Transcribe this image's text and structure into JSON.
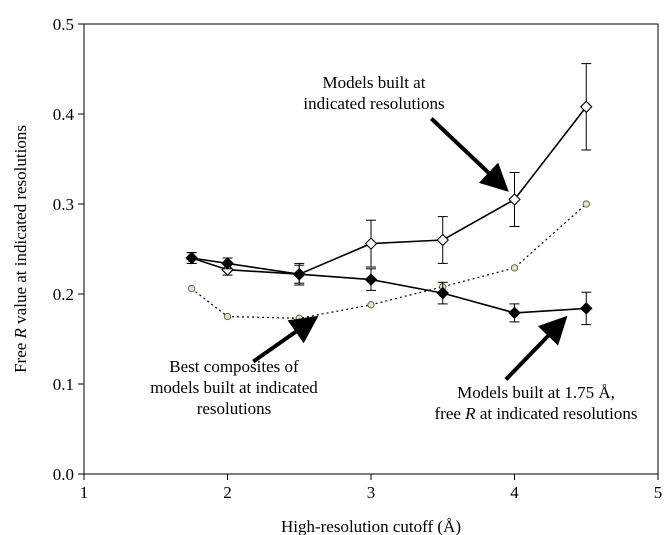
{
  "chart_data": {
    "type": "line",
    "xlabel": "High-resolution cutoff (Å)",
    "ylabel_parts": [
      "Free ",
      "R",
      " value at indicated resolutions"
    ],
    "xlim": [
      1,
      5
    ],
    "ylim": [
      0,
      0.5
    ],
    "x_ticks": [
      1,
      2,
      3,
      4,
      5
    ],
    "y_ticks": [
      0.0,
      0.1,
      0.2,
      0.3,
      0.4,
      0.5
    ],
    "x_tick_labels": [
      "1",
      "2",
      "3",
      "4",
      "5"
    ],
    "y_tick_labels": [
      "0.0",
      "0.1",
      "0.2",
      "0.3",
      "0.4",
      "0.5"
    ],
    "grid": false,
    "legend": "none",
    "series": [
      {
        "marker": "open-diamond",
        "line": "solid",
        "color": "#000000",
        "x": [
          1.75,
          2,
          2.5,
          3,
          3.5,
          4,
          4.5
        ],
        "y": [
          0.24,
          0.227,
          0.222,
          0.256,
          0.26,
          0.305,
          0.408
        ],
        "err": [
          0.006,
          0.006,
          0.01,
          0.026,
          0.026,
          0.03,
          0.048
        ]
      },
      {
        "marker": "filled-diamond",
        "line": "solid",
        "color": "#000000",
        "x": [
          1.75,
          2,
          2.5,
          3,
          3.5,
          4,
          4.5
        ],
        "y": [
          0.24,
          0.234,
          0.222,
          0.216,
          0.201,
          0.179,
          0.184
        ],
        "err": [
          0.006,
          0.006,
          0.012,
          0.012,
          0.012,
          0.01,
          0.018
        ]
      },
      {
        "marker": "small-circle",
        "line": "dotted",
        "color": "#000000",
        "x": [
          1.75,
          2,
          2.5,
          3,
          3.5,
          4,
          4.5
        ],
        "y": [
          0.206,
          0.175,
          0.173,
          0.188,
          0.208,
          0.229,
          0.3
        ],
        "err": []
      }
    ],
    "annotations": [
      {
        "lines": [
          "Models built at",
          "indicated resolutions"
        ],
        "arrow_from": [
          3.42,
          0.395
        ],
        "arrow_to": [
          3.93,
          0.318
        ]
      },
      {
        "lines": [
          "Best composites of",
          "models built at indicated",
          "resolutions"
        ],
        "arrow_from": [
          2.18,
          0.125
        ],
        "arrow_to": [
          2.6,
          0.172
        ]
      },
      {
        "lines": [
          "Models built at 1.75 Å,",
          "free R at indicated resolutions"
        ],
        "arrow_from": [
          3.94,
          0.105
        ],
        "arrow_to": [
          4.34,
          0.171
        ]
      }
    ],
    "colors": {
      "marker_fill_open": "#ffffff",
      "circle_fill": "#e6e6b8"
    }
  }
}
